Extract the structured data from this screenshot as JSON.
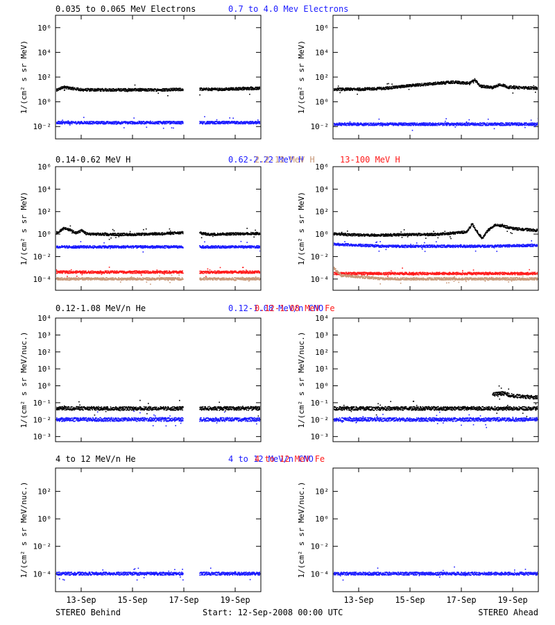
{
  "page": {
    "footer_left": "STEREO Behind",
    "footer_center": "Start: 12-Sep-2008 00:00 UTC",
    "footer_right": "STEREO Ahead"
  },
  "colors": {
    "black": "#000000",
    "blue": "#1a1aff",
    "tan": "#c89878",
    "red": "#ff1a1a"
  },
  "chart_data": [
    {
      "type": "scatter",
      "log_y": true,
      "ylabel": "1/(cm² s sr MeV)",
      "ylim": [
        0.001,
        10000000
      ],
      "yticks": [
        0.01,
        1,
        100,
        10000,
        1000000
      ],
      "ytick_labels": [
        "10⁻²",
        "10⁰",
        "10²",
        "10⁴",
        "10⁶"
      ],
      "xlim": [
        0,
        8
      ],
      "xticks": [
        1,
        3,
        5,
        7
      ],
      "xtick_labels": [
        "13-Sep",
        "15-Sep",
        "17-Sep",
        "19-Sep"
      ],
      "legend": [
        {
          "text": "0.035 to 0.065 MeV Electrons",
          "color": "#000000"
        },
        {
          "text": "0.7 to 4.0 Mev Electrons",
          "color": "#1a1aff"
        }
      ],
      "panels": [
        {
          "spacecraft": "STEREO Behind",
          "gaps": [
            [
              4.95,
              5.6
            ]
          ],
          "series": [
            {
              "color": "#000000",
              "x": [
                0,
                0.3,
                0.6,
                1,
                2,
                3,
                4,
                4.95,
                5.6,
                6.5,
                7,
                8
              ],
              "y": [
                8,
                15,
                12,
                9,
                9,
                9,
                9,
                10,
                10,
                10,
                11,
                12
              ]
            },
            {
              "color": "#1a1aff",
              "x": [
                0,
                2,
                4,
                4.95,
                5.6,
                8
              ],
              "y": [
                0.02,
                0.02,
                0.02,
                0.02,
                0.02,
                0.02
              ]
            }
          ]
        },
        {
          "spacecraft": "STEREO Ahead",
          "gaps": [],
          "series": [
            {
              "color": "#000000",
              "x": [
                0,
                1,
                2,
                3,
                4,
                4.7,
                5.3,
                5.5,
                5.7,
                6.2,
                6.5,
                6.8,
                8
              ],
              "y": [
                10,
                10,
                12,
                20,
                30,
                38,
                30,
                60,
                18,
                14,
                25,
                15,
                12
              ]
            },
            {
              "color": "#1a1aff",
              "x": [
                0,
                2,
                4,
                6,
                8
              ],
              "y": [
                0.015,
                0.015,
                0.015,
                0.015,
                0.015
              ]
            }
          ]
        }
      ]
    },
    {
      "type": "scatter",
      "log_y": true,
      "ylabel": "1/(cm² s sr MeV)",
      "ylim": [
        1e-05,
        1000000
      ],
      "yticks": [
        0.0001,
        0.01,
        1,
        100,
        10000,
        1000000
      ],
      "ytick_labels": [
        "10⁻⁴",
        "10⁻²",
        "10⁰",
        "10²",
        "10⁴",
        "10⁶"
      ],
      "xlim": [
        0,
        8
      ],
      "xticks": [
        1,
        3,
        5,
        7
      ],
      "xtick_labels": [
        "13-Sep",
        "15-Sep",
        "17-Sep",
        "19-Sep"
      ],
      "legend": [
        {
          "text": "0.14-0.62 MeV H",
          "color": "#000000"
        },
        {
          "text": "0.62-2.22 MeV H",
          "color": "#1a1aff"
        },
        {
          "text": "2.2-12 MeV H",
          "color": "#c89878"
        },
        {
          "text": "13-100 MeV H",
          "color": "#ff1a1a"
        }
      ],
      "panels": [
        {
          "spacecraft": "STEREO Behind",
          "gaps": [
            [
              4.95,
              5.6
            ]
          ],
          "series": [
            {
              "color": "#000000",
              "x": [
                0,
                0.3,
                0.5,
                0.8,
                1,
                1.2,
                2,
                3,
                4,
                4.95,
                5.6,
                6,
                6.5,
                8
              ],
              "y": [
                1.2,
                3,
                2.5,
                1.2,
                2,
                1,
                0.9,
                0.9,
                1,
                1.3,
                1.2,
                0.9,
                1,
                1.1
              ]
            },
            {
              "color": "#1a1aff",
              "x": [
                0,
                2,
                4,
                4.95,
                5.6,
                8
              ],
              "y": [
                0.07,
                0.07,
                0.07,
                0.07,
                0.07,
                0.07
              ]
            },
            {
              "color": "#ff1a1a",
              "x": [
                0,
                4.95,
                5.6,
                8
              ],
              "y": [
                0.0004,
                0.0004,
                0.0004,
                0.0004
              ]
            },
            {
              "color": "#c89878",
              "x": [
                0,
                4.95,
                5.6,
                8
              ],
              "y": [
                0.0001,
                0.0001,
                0.0001,
                0.0001
              ]
            }
          ]
        },
        {
          "spacecraft": "STEREO Ahead",
          "gaps": [],
          "series": [
            {
              "color": "#000000",
              "x": [
                0,
                1,
                2,
                3,
                4,
                5.2,
                5.4,
                5.6,
                5.8,
                6,
                6.3,
                6.6,
                7,
                8
              ],
              "y": [
                1,
                0.8,
                0.8,
                0.9,
                0.9,
                1.5,
                8,
                1.5,
                0.4,
                2,
                6,
                5,
                3,
                2
              ]
            },
            {
              "color": "#1a1aff",
              "x": [
                0,
                2,
                4,
                6,
                8
              ],
              "y": [
                0.12,
                0.08,
                0.08,
                0.08,
                0.1
              ]
            },
            {
              "color": "#ff1a1a",
              "x": [
                0,
                2,
                4,
                6,
                8
              ],
              "y": [
                0.0003,
                0.0003,
                0.0003,
                0.0003,
                0.0003
              ]
            },
            {
              "color": "#c89878",
              "x": [
                0,
                0.3,
                2,
                4,
                8
              ],
              "y": [
                0.001,
                0.0002,
                0.0001,
                0.0001,
                0.0001
              ]
            }
          ]
        }
      ]
    },
    {
      "type": "scatter",
      "log_y": true,
      "ylabel": "1/(cm² s sr MeV/nuc.)",
      "ylim": [
        0.0005,
        10000
      ],
      "yticks": [
        0.001,
        0.01,
        0.1,
        1,
        10,
        100,
        1000,
        10000
      ],
      "ytick_labels": [
        "10⁻³",
        "10⁻²",
        "10⁻¹",
        "10⁰",
        "10¹",
        "10²",
        "10³",
        "10⁴"
      ],
      "xlim": [
        0,
        8
      ],
      "xticks": [
        1,
        3,
        5,
        7
      ],
      "xtick_labels": [
        "13-Sep",
        "15-Sep",
        "17-Sep",
        "19-Sep"
      ],
      "legend": [
        {
          "text": "0.12-1.08 MeV/n He",
          "color": "#000000"
        },
        {
          "text": "0.12-1.08 MeV/n CNO",
          "color": "#1a1aff"
        },
        {
          "text": "0.12-1.08 MeV Fe",
          "color": "#ff1a1a"
        }
      ],
      "panels": [
        {
          "spacecraft": "STEREO Behind",
          "gaps": [
            [
              4.95,
              5.6
            ]
          ],
          "series": [
            {
              "color": "#000000",
              "x": [
                0,
                2,
                4,
                4.95,
                5.6,
                8
              ],
              "y": [
                0.045,
                0.045,
                0.045,
                0.045,
                0.045,
                0.045
              ]
            },
            {
              "color": "#1a1aff",
              "x": [
                0,
                4.95,
                5.6,
                8
              ],
              "y": [
                0.01,
                0.01,
                0.01,
                0.01
              ]
            }
          ]
        },
        {
          "spacecraft": "STEREO Ahead",
          "gaps": [],
          "series": [
            {
              "color": "#000000",
              "x": [
                0,
                2,
                4,
                6,
                8
              ],
              "y": [
                0.045,
                0.045,
                0.045,
                0.045,
                0.045
              ]
            },
            {
              "color": "#000000",
              "x": [
                6.2,
                6.6,
                7,
                7.4,
                8
              ],
              "y": [
                0.3,
                0.35,
                0.25,
                0.22,
                0.2
              ]
            },
            {
              "color": "#1a1aff",
              "x": [
                0,
                4,
                8
              ],
              "y": [
                0.01,
                0.01,
                0.01
              ]
            }
          ]
        }
      ]
    },
    {
      "type": "scatter",
      "log_y": true,
      "ylabel": "1/(cm² s sr MeV/nuc.)",
      "ylim": [
        5e-06,
        5000
      ],
      "yticks": [
        0.0001,
        0.01,
        1,
        100
      ],
      "ytick_labels": [
        "10⁻⁴",
        "10⁻²",
        "10⁰",
        "10²"
      ],
      "xlim": [
        0,
        8
      ],
      "xticks": [
        1,
        3,
        5,
        7
      ],
      "xtick_labels": [
        "13-Sep",
        "15-Sep",
        "17-Sep",
        "19-Sep"
      ],
      "legend": [
        {
          "text": "4 to 12 MeV/n He",
          "color": "#000000"
        },
        {
          "text": "4 to 12 MeV/n CNO",
          "color": "#1a1aff"
        },
        {
          "text": "4 to 12 MeV Fe",
          "color": "#ff1a1a"
        }
      ],
      "panels": [
        {
          "spacecraft": "STEREO Behind",
          "gaps": [
            [
              4.95,
              5.6
            ]
          ],
          "series": [
            {
              "color": "#1a1aff",
              "x": [
                0,
                4.95,
                5.6,
                8
              ],
              "y": [
                0.0001,
                0.0001,
                0.0001,
                0.0001
              ]
            }
          ]
        },
        {
          "spacecraft": "STEREO Ahead",
          "gaps": [],
          "series": [
            {
              "color": "#1a1aff",
              "x": [
                0,
                8
              ],
              "y": [
                0.0001,
                0.0001
              ]
            }
          ]
        }
      ]
    }
  ]
}
